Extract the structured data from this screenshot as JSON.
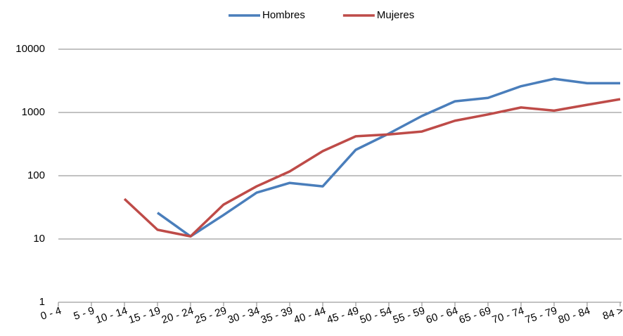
{
  "chart_data": {
    "type": "line",
    "categories": [
      "0 - 4",
      "5 - 9",
      "10 - 14",
      "15 - 19",
      "20 - 24",
      "25 - 29",
      "30 - 34",
      "35 - 39",
      "40 - 44",
      "45 - 49",
      "50 - 54",
      "55 - 59",
      "60 - 64",
      "65 - 69",
      "70 - 74",
      "75 - 79",
      "80 - 84",
      "84 >"
    ],
    "series": [
      {
        "name": "Hombres",
        "color": "#4a7ebb",
        "values": [
          null,
          null,
          null,
          26,
          11,
          24,
          54,
          77,
          68,
          257,
          464,
          880,
          1500,
          1700,
          2600,
          3400,
          2900,
          2900
        ]
      },
      {
        "name": "Mujeres",
        "color": "#be4b48",
        "values": [
          null,
          null,
          43,
          14,
          11,
          35,
          68,
          117,
          245,
          420,
          450,
          500,
          740,
          930,
          1200,
          1070,
          1320,
          1620
        ]
      }
    ],
    "ylim": [
      1,
      10000
    ],
    "yticks": [
      1,
      10,
      100,
      1000,
      10000
    ],
    "log_scale": true,
    "grid": true,
    "legend": "top"
  }
}
